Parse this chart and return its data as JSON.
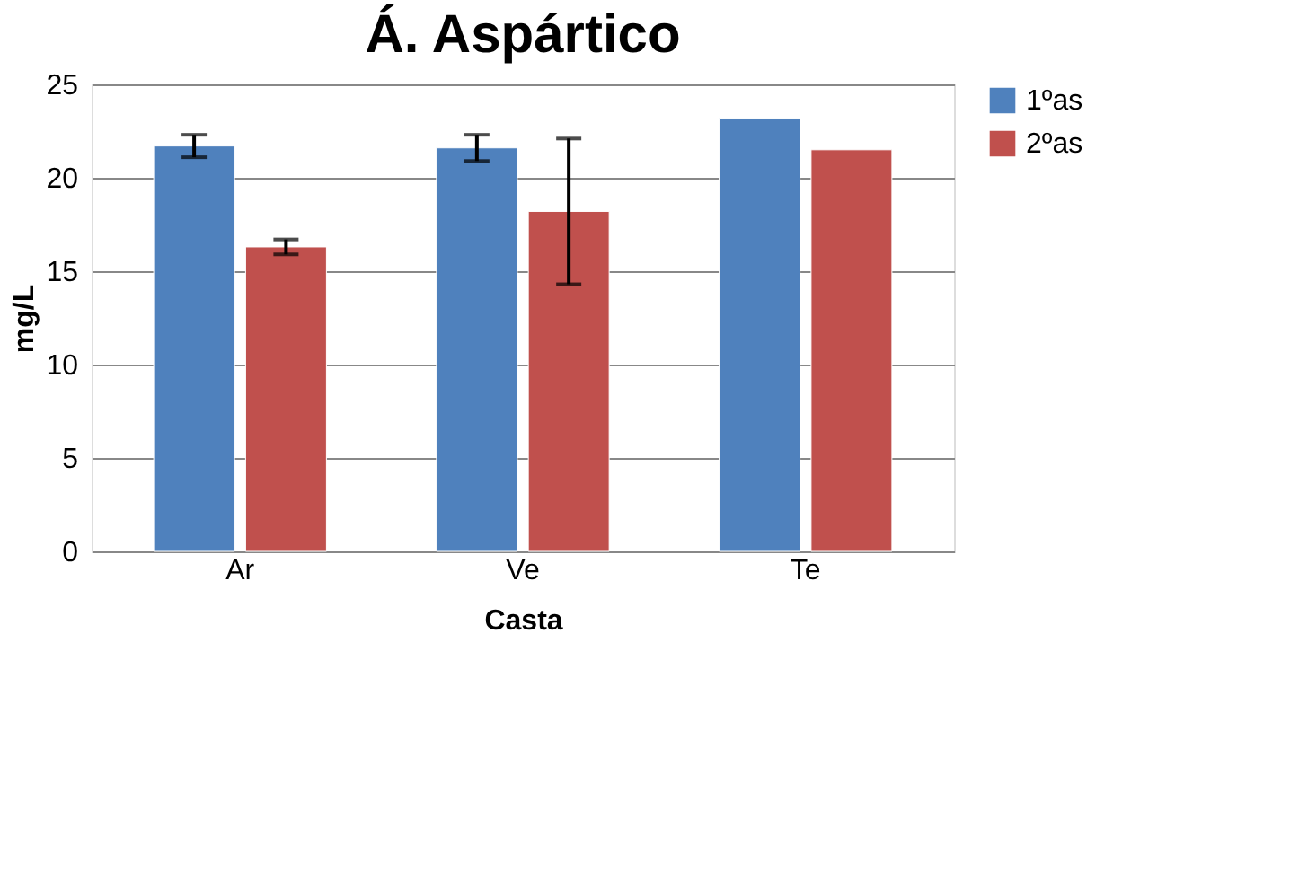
{
  "chart_data": {
    "type": "bar",
    "title": "Á. Aspártico",
    "xlabel": "Casta",
    "ylabel": "mg/L",
    "categories": [
      "Ar",
      "Ve",
      "Te"
    ],
    "series": [
      {
        "name": "1ºas",
        "color": "#4f81bd",
        "values": [
          21.7,
          21.6,
          23.2
        ],
        "errors": [
          0.6,
          0.7,
          null
        ]
      },
      {
        "name": "2ºas",
        "color": "#c0504d",
        "values": [
          16.3,
          18.2,
          21.5
        ],
        "errors": [
          0.4,
          3.9,
          null
        ]
      }
    ],
    "ylim": [
      0,
      25
    ],
    "yticks": [
      0,
      5,
      10,
      15,
      20,
      25
    ],
    "grid": "y",
    "legend": "right"
  }
}
